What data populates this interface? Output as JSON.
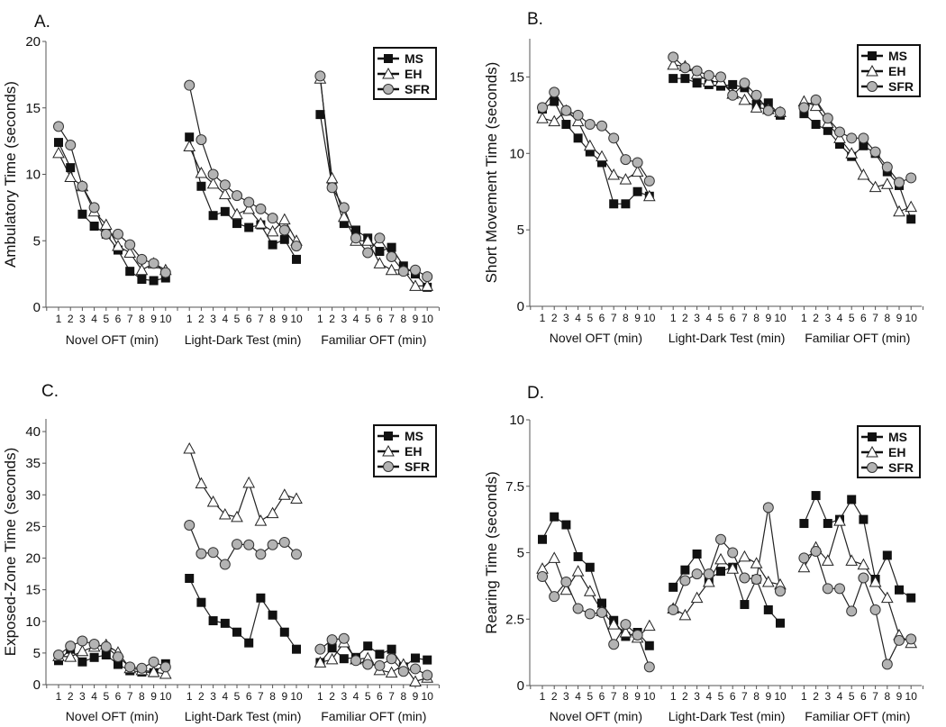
{
  "legend": [
    "MS",
    "EH",
    "SFR"
  ],
  "groups": [
    "Novel OFT (min)",
    "Light-Dark Test (min)",
    "Familiar OFT (min)"
  ],
  "minutes": [
    "1",
    "2",
    "3",
    "4",
    "5",
    "6",
    "7",
    "8",
    "9",
    "10"
  ],
  "colors": {
    "MS": "#111111",
    "EH": "#ffffff",
    "SFR": "#b3b3b3",
    "line": "#222222"
  },
  "chart_data": [
    {
      "type": "line",
      "panel": "A.",
      "ylabel": "Ambulatory Time (seconds)",
      "ylim": [
        0,
        20
      ],
      "yticks": [
        0,
        5,
        10,
        15,
        20
      ],
      "ytick_labels": [
        "0",
        "5",
        "10",
        "15",
        "20"
      ],
      "series": [
        {
          "name": "MS",
          "values": [
            [
              12.4,
              10.5,
              7.0,
              6.1,
              5.5,
              4.3,
              2.7,
              2.1,
              2.0,
              2.2
            ],
            [
              12.8,
              9.1,
              6.9,
              7.2,
              6.3,
              6.0,
              6.2,
              4.7,
              5.1,
              3.6
            ],
            [
              14.5,
              9.1,
              6.3,
              5.8,
              5.2,
              4.2,
              4.5,
              3.1,
              2.5,
              1.5
            ]
          ]
        },
        {
          "name": "EH",
          "values": [
            [
              11.6,
              9.8,
              9.1,
              7.2,
              6.2,
              4.6,
              4.1,
              2.8,
              3.3,
              2.8
            ],
            [
              12.1,
              10.1,
              9.3,
              8.5,
              7.0,
              7.4,
              6.3,
              5.7,
              6.6,
              5.0
            ],
            [
              17.2,
              9.7,
              6.8,
              5.0,
              5.0,
              3.3,
              2.8,
              2.8,
              1.6,
              1.6
            ]
          ]
        },
        {
          "name": "SFR",
          "values": [
            [
              13.6,
              12.2,
              9.1,
              7.5,
              5.5,
              5.5,
              4.7,
              3.6,
              3.3,
              2.6
            ],
            [
              16.7,
              12.6,
              10.0,
              9.2,
              8.4,
              7.9,
              7.4,
              6.7,
              5.8,
              4.6
            ],
            [
              17.4,
              9.0,
              7.5,
              5.2,
              4.1,
              5.2,
              3.8,
              2.7,
              2.8,
              2.3
            ]
          ]
        }
      ]
    },
    {
      "type": "line",
      "panel": "B.",
      "ylabel": "Short Movement Time (seconds)",
      "ylim": [
        0,
        17.5
      ],
      "yticks": [
        0,
        5,
        10,
        15
      ],
      "ytick_labels": [
        "0",
        "5",
        "10",
        "15"
      ],
      "series": [
        {
          "name": "MS",
          "values": [
            [
              12.9,
              13.4,
              11.9,
              11.0,
              10.1,
              9.4,
              6.7,
              6.7,
              7.5,
              7.2
            ],
            [
              14.9,
              14.9,
              14.6,
              14.5,
              14.4,
              14.5,
              14.3,
              13.2,
              13.3,
              12.5
            ],
            [
              12.6,
              11.9,
              11.5,
              10.6,
              9.8,
              10.5,
              10.0,
              8.8,
              7.9,
              5.7
            ]
          ]
        },
        {
          "name": "EH",
          "values": [
            [
              12.3,
              12.1,
              12.8,
              12.1,
              10.5,
              9.8,
              8.6,
              8.3,
              8.8,
              7.2
            ],
            [
              15.8,
              15.7,
              15.2,
              14.7,
              14.7,
              13.9,
              13.5,
              13.0,
              12.9,
              12.7
            ],
            [
              13.4,
              13.1,
              12.0,
              11.0,
              10.0,
              8.6,
              7.8,
              8.0,
              6.2,
              6.5
            ]
          ]
        },
        {
          "name": "SFR",
          "values": [
            [
              13.0,
              14.0,
              12.8,
              12.5,
              11.9,
              11.8,
              11.0,
              9.6,
              9.4,
              8.2
            ],
            [
              16.3,
              15.6,
              15.4,
              15.1,
              15.0,
              13.8,
              14.6,
              13.8,
              12.8,
              12.7
            ],
            [
              13.0,
              13.5,
              12.3,
              11.4,
              11.0,
              11.0,
              10.1,
              9.1,
              8.1,
              8.4
            ]
          ]
        }
      ]
    },
    {
      "type": "line",
      "panel": "C.",
      "ylabel": "Exposed-Zone Time (seconds)",
      "ylim": [
        0,
        42
      ],
      "yticks": [
        0,
        5,
        10,
        15,
        20,
        25,
        30,
        35,
        40
      ],
      "ytick_labels": [
        "0",
        "5",
        "10",
        "15",
        "20",
        "25",
        "30",
        "35",
        "40"
      ],
      "series": [
        {
          "name": "MS",
          "values": [
            [
              3.8,
              5.6,
              3.6,
              4.3,
              4.7,
              3.2,
              2.2,
              2.0,
              1.9,
              3.3
            ],
            [
              16.8,
              13.0,
              10.1,
              9.7,
              8.3,
              6.6,
              13.7,
              11.0,
              8.3,
              5.6
            ],
            [
              3.5,
              5.8,
              4.1,
              4.3,
              6.1,
              4.8,
              5.6,
              2.8,
              4.2,
              3.9
            ]
          ]
        },
        {
          "name": "EH",
          "values": [
            [
              4.5,
              4.4,
              5.3,
              6.0,
              6.3,
              5.1,
              2.6,
              2.3,
              2.0,
              1.7
            ],
            [
              37.3,
              31.8,
              28.9,
              26.9,
              26.5,
              31.9,
              25.9,
              27.1,
              30.0,
              29.4
            ],
            [
              3.5,
              4.0,
              6.7,
              4.0,
              4.2,
              2.3,
              1.9,
              3.2,
              0.5,
              1.1
            ]
          ]
        },
        {
          "name": "SFR",
          "values": [
            [
              4.7,
              6.1,
              6.9,
              6.4,
              6.0,
              4.4,
              2.8,
              2.6,
              3.6,
              2.8
            ],
            [
              25.2,
              20.7,
              20.9,
              19.0,
              22.2,
              22.1,
              20.6,
              22.1,
              22.5,
              20.6
            ],
            [
              5.6,
              7.1,
              7.3,
              3.8,
              3.2,
              3.0,
              4.1,
              2.1,
              2.5,
              1.5
            ]
          ]
        }
      ]
    },
    {
      "type": "line",
      "panel": "D.",
      "ylabel": "Rearing Time (seconds)",
      "ylim": [
        0,
        10
      ],
      "yticks": [
        0,
        2.5,
        5,
        7.5,
        10
      ],
      "ytick_labels": [
        "0",
        "2.5",
        "5",
        "7.5",
        "10"
      ],
      "series": [
        {
          "name": "MS",
          "values": [
            [
              5.5,
              6.35,
              6.05,
              4.85,
              4.45,
              3.1,
              2.45,
              1.85,
              2.0,
              1.5
            ],
            [
              3.7,
              4.35,
              4.95,
              4.0,
              4.3,
              4.45,
              3.05,
              4.0,
              2.85,
              2.35
            ],
            [
              6.1,
              7.15,
              6.1,
              6.25,
              7.0,
              6.25,
              4.0,
              4.9,
              3.6,
              3.3
            ]
          ]
        },
        {
          "name": "EH",
          "values": [
            [
              4.4,
              4.8,
              3.6,
              4.3,
              3.55,
              2.8,
              2.3,
              2.0,
              1.8,
              2.25
            ],
            [
              2.9,
              2.65,
              3.3,
              3.9,
              4.75,
              4.4,
              4.85,
              4.6,
              3.9,
              3.8
            ],
            [
              4.45,
              5.2,
              4.7,
              6.2,
              4.7,
              4.55,
              3.9,
              3.3,
              1.9,
              1.6
            ]
          ]
        },
        {
          "name": "SFR",
          "values": [
            [
              4.1,
              3.35,
              3.9,
              2.9,
              2.7,
              2.75,
              1.55,
              2.3,
              1.9,
              0.7
            ],
            [
              2.85,
              3.95,
              4.2,
              4.2,
              5.5,
              5.0,
              4.05,
              4.0,
              6.7,
              3.55
            ],
            [
              4.8,
              5.05,
              3.65,
              3.65,
              2.8,
              4.05,
              2.85,
              0.8,
              1.7,
              1.75
            ]
          ]
        }
      ]
    }
  ]
}
